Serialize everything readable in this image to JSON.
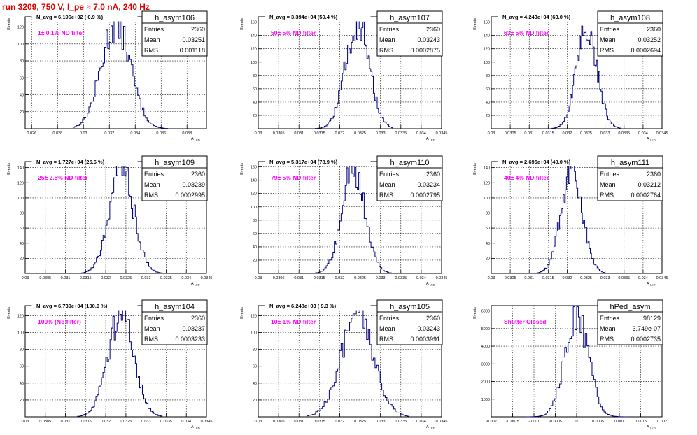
{
  "page": {
    "title": "run 3209,   750 V, I_pe ≈ 7.0 nA, 240 Hz",
    "colors": {
      "title": "#e00000",
      "histogram": "#00007a",
      "annotation": "#ff00ff",
      "grid": "#000000"
    }
  },
  "chart_data": [
    {
      "type": "histogram",
      "name": "h_asym106",
      "stats": {
        "Entries": "2360",
        "Mean": "0.03251",
        "RMS": "0.001118"
      },
      "n_avg": "N_avg = 6.196e+02 ( 0.9 %)",
      "annotation": "1± 0.1% ND filter",
      "ylabel": "Events",
      "xlabel": "A",
      "xlabel_sub": "LED",
      "xlim": [
        0.0255,
        0.0395
      ],
      "ylim": [
        0,
        132
      ],
      "xticks": [
        "0.026",
        "0.028",
        "0.03",
        "0.032",
        "0.034",
        "0.036",
        "0.038"
      ],
      "xtick_values": [
        0.026,
        0.028,
        0.03,
        0.032,
        0.034,
        0.036,
        0.038
      ],
      "yticks": [
        "20",
        "40",
        "60",
        "80",
        "100",
        "120"
      ],
      "ytick_values": [
        20,
        40,
        60,
        80,
        100,
        120
      ],
      "grid": true,
      "mean": 0.03251,
      "sigma": 0.001118,
      "peak": 125,
      "range": [
        0.0292,
        0.0365
      ]
    },
    {
      "type": "histogram",
      "name": "h_asym107",
      "stats": {
        "Entries": "2360",
        "Mean": "0.03243",
        "RMS": "0.0002875"
      },
      "n_avg": "N_avg = 3.394e+04 (50.4 %)",
      "annotation": "50± 5% ND filter",
      "ylabel": "Events",
      "xlabel": "A",
      "xlabel_sub": "LED",
      "xlim": [
        0.03,
        0.0345
      ],
      "ylim": [
        0,
        168
      ],
      "xticks": [
        "0.03",
        "0.0305",
        "0.031",
        "0.0315",
        "0.032",
        "0.0325",
        "0.033",
        "0.0335",
        "0.034",
        "0.0345"
      ],
      "xtick_values": [
        0.03,
        0.0305,
        0.031,
        0.0315,
        0.032,
        0.0325,
        0.033,
        0.0335,
        0.034,
        0.0345
      ],
      "yticks": [
        "20",
        "40",
        "60",
        "80",
        "100",
        "120",
        "140",
        "160"
      ],
      "ytick_values": [
        20,
        40,
        60,
        80,
        100,
        120,
        140,
        160
      ],
      "grid": true,
      "mean": 0.03243,
      "sigma": 0.0002875,
      "peak": 160,
      "range": [
        0.0314,
        0.0333
      ]
    },
    {
      "type": "histogram",
      "name": "h_asym108",
      "stats": {
        "Entries": "2360",
        "Mean": "0.03252",
        "RMS": "0.0002694"
      },
      "n_avg": "N_avg = 4.243e+04 (63.0 %)",
      "annotation": "63± 5% ND filter",
      "ylabel": "Events",
      "xlabel": "A",
      "xlabel_sub": "LED",
      "xlim": [
        0.03,
        0.0345
      ],
      "ylim": [
        0,
        168
      ],
      "xticks": [
        "0.03",
        "0.0305",
        "0.031",
        "0.0315",
        "0.032",
        "0.0325",
        "0.033",
        "0.0335",
        "0.034",
        "0.0345"
      ],
      "xtick_values": [
        0.03,
        0.0305,
        0.031,
        0.0315,
        0.032,
        0.0325,
        0.033,
        0.0335,
        0.034,
        0.0345
      ],
      "yticks": [
        "20",
        "40",
        "60",
        "80",
        "100",
        "120",
        "140",
        "160"
      ],
      "ytick_values": [
        20,
        40,
        60,
        80,
        100,
        120,
        140,
        160
      ],
      "grid": true,
      "mean": 0.03252,
      "sigma": 0.0002694,
      "peak": 152,
      "range": [
        0.0316,
        0.0334
      ]
    },
    {
      "type": "histogram",
      "name": "h_asym109",
      "stats": {
        "Entries": "2360",
        "Mean": "0.03239",
        "RMS": "0.0002995"
      },
      "n_avg": "N_avg = 1.727e+04 (25.6 %)",
      "annotation": "25± 2.5% ND filter",
      "ylabel": "Events",
      "xlabel": "A",
      "xlabel_sub": "LED",
      "xlim": [
        0.03,
        0.0345
      ],
      "ylim": [
        0,
        148
      ],
      "xticks": [
        "0.03",
        "0.0305",
        "0.031",
        "0.0315",
        "0.032",
        "0.0325",
        "0.033",
        "0.0335",
        "0.034",
        "0.0345"
      ],
      "xtick_values": [
        0.03,
        0.0305,
        0.031,
        0.0315,
        0.032,
        0.0325,
        0.033,
        0.0335,
        0.034,
        0.0345
      ],
      "yticks": [
        "20",
        "40",
        "60",
        "80",
        "100",
        "120",
        "140"
      ],
      "ytick_values": [
        20,
        40,
        60,
        80,
        100,
        120,
        140
      ],
      "grid": true,
      "mean": 0.03239,
      "sigma": 0.0002995,
      "peak": 143,
      "range": [
        0.0314,
        0.0334
      ]
    },
    {
      "type": "histogram",
      "name": "h_asym110",
      "stats": {
        "Entries": "2360",
        "Mean": "0.03234",
        "RMS": "0.0002795"
      },
      "n_avg": "N_avg = 5.317e+04 (78.9 %)",
      "annotation": "79± 5% ND filter",
      "ylabel": "Events",
      "xlabel": "A",
      "xlabel_sub": "LED",
      "xlim": [
        0.03,
        0.0345
      ],
      "ylim": [
        0,
        168
      ],
      "xticks": [
        "0.03",
        "0.0305",
        "0.031",
        "0.0315",
        "0.032",
        "0.0325",
        "0.033",
        "0.0335",
        "0.034",
        "0.0345"
      ],
      "xtick_values": [
        0.03,
        0.0305,
        0.031,
        0.0315,
        0.032,
        0.0325,
        0.033,
        0.0335,
        0.034,
        0.0345
      ],
      "yticks": [
        "20",
        "40",
        "60",
        "80",
        "100",
        "120",
        "140",
        "160"
      ],
      "ytick_values": [
        20,
        40,
        60,
        80,
        100,
        120,
        140,
        160
      ],
      "grid": true,
      "mean": 0.03234,
      "sigma": 0.0002795,
      "peak": 160,
      "range": [
        0.0313,
        0.0333
      ]
    },
    {
      "type": "histogram",
      "name": "h_asym111",
      "stats": {
        "Entries": "2360",
        "Mean": "0.03212",
        "RMS": "0.0002764"
      },
      "n_avg": "N_avg = 2.695e+04 (40.0 %)",
      "annotation": "40± 4% ND filter",
      "ylabel": "Events",
      "xlabel": "A",
      "xlabel_sub": "LED",
      "xlim": [
        0.03,
        0.0345
      ],
      "ylim": [
        0,
        148
      ],
      "xticks": [
        "0.03",
        "0.0305",
        "0.031",
        "0.0315",
        "0.032",
        "0.0325",
        "0.033",
        "0.0335",
        "0.034",
        "0.0345"
      ],
      "xtick_values": [
        0.03,
        0.0305,
        0.031,
        0.0315,
        0.032,
        0.0325,
        0.033,
        0.0335,
        0.034,
        0.0345
      ],
      "yticks": [
        "20",
        "40",
        "60",
        "80",
        "100",
        "120",
        "140"
      ],
      "ytick_values": [
        20,
        40,
        60,
        80,
        100,
        120,
        140
      ],
      "grid": true,
      "mean": 0.03212,
      "sigma": 0.0002764,
      "peak": 142,
      "range": [
        0.0312,
        0.033
      ]
    },
    {
      "type": "histogram",
      "name": "h_asym104",
      "stats": {
        "Entries": "2360",
        "Mean": "0.03237",
        "RMS": "0.0003233"
      },
      "n_avg": "N_avg = 6.739e+04 (100.0 %)",
      "annotation": "100% (No filter)",
      "ylabel": "Events",
      "xlabel": "A",
      "xlabel_sub": "LED",
      "xlim": [
        0.03,
        0.0345
      ],
      "ylim": [
        0,
        132
      ],
      "xticks": [
        "0.03",
        "0.0305",
        "0.031",
        "0.0315",
        "0.032",
        "0.0325",
        "0.033",
        "0.0335",
        "0.034",
        "0.0345"
      ],
      "xtick_values": [
        0.03,
        0.0305,
        0.031,
        0.0315,
        0.032,
        0.0325,
        0.033,
        0.0335,
        0.034,
        0.0345
      ],
      "yticks": [
        "20",
        "40",
        "60",
        "80",
        "100",
        "120"
      ],
      "ytick_values": [
        20,
        40,
        60,
        80,
        100,
        120
      ],
      "grid": true,
      "mean": 0.03237,
      "sigma": 0.0003233,
      "peak": 121,
      "range": [
        0.0313,
        0.0334
      ]
    },
    {
      "type": "histogram",
      "name": "h_asym105",
      "stats": {
        "Entries": "2360",
        "Mean": "0.03243",
        "RMS": "0.0003991"
      },
      "n_avg": "N_avg = 6.248e+03 ( 9.3 %)",
      "annotation": "10± 1% ND filter",
      "ylabel": "Events",
      "xlabel": "A",
      "xlabel_sub": "LED",
      "xlim": [
        0.03,
        0.0345
      ],
      "ylim": [
        0,
        132
      ],
      "xticks": [
        "0.03",
        "0.0305",
        "0.031",
        "0.0315",
        "0.032",
        "0.0325",
        "0.033",
        "0.0335",
        "0.034",
        "0.0345"
      ],
      "xtick_values": [
        0.03,
        0.0305,
        0.031,
        0.0315,
        0.032,
        0.0325,
        0.033,
        0.0335,
        0.034,
        0.0345
      ],
      "yticks": [
        "20",
        "40",
        "60",
        "80",
        "100",
        "120"
      ],
      "ytick_values": [
        20,
        40,
        60,
        80,
        100,
        120
      ],
      "grid": true,
      "mean": 0.03243,
      "sigma": 0.0003991,
      "peak": 120,
      "range": [
        0.0312,
        0.0337
      ]
    },
    {
      "type": "histogram",
      "name": "hPed_asym",
      "stats": {
        "Entries": "98129",
        "Mean": "3.749e-07",
        "RMS": "0.0002735"
      },
      "annotation": "Shutter Closed",
      "ylabel": "Events",
      "xlabel": "A",
      "xlabel_sub": "LED",
      "xlim": [
        -0.002,
        0.002
      ],
      "ylim": [
        0,
        6300
      ],
      "xticks": [
        "-0.002",
        "-0.0015",
        "-0.001",
        "-0.0005",
        "0",
        "0.0005",
        "0.001",
        "0.0015",
        "0.002"
      ],
      "xtick_values": [
        -0.002,
        -0.0015,
        -0.001,
        -0.0005,
        0,
        0.0005,
        0.001,
        0.0015,
        0.002
      ],
      "yticks": [
        "1000",
        "2000",
        "3000",
        "4000",
        "5000",
        "6000"
      ],
      "ytick_values": [
        1000,
        2000,
        3000,
        4000,
        5000,
        6000
      ],
      "grid": true,
      "mean": 0.0,
      "sigma": 0.0002735,
      "peak": 5850,
      "range": [
        -0.0012,
        0.0012
      ]
    }
  ]
}
